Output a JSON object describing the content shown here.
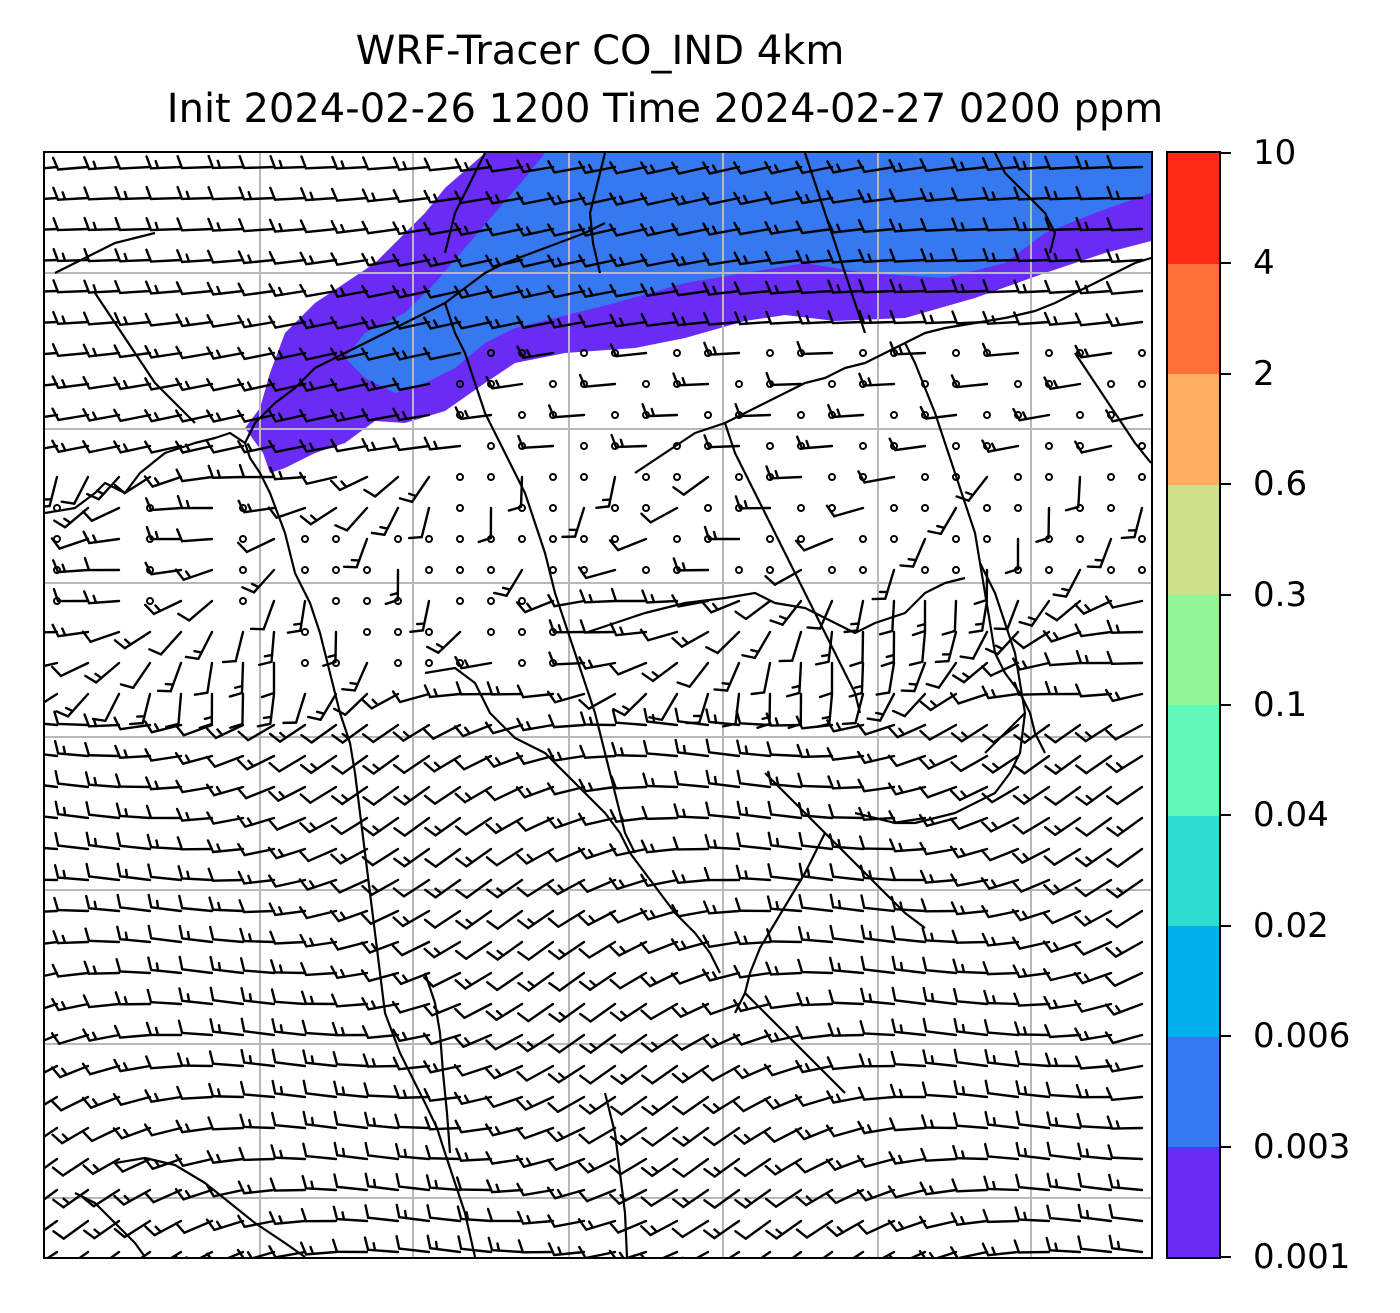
{
  "title": {
    "line1": "WRF-Tracer CO_IND 4km",
    "line2": "Init 2024-02-26 1200 Time 2024-02-27 0200 ppm"
  },
  "colorbar": {
    "levels": [
      "0.001",
      "0.003",
      "0.006",
      "0.02",
      "0.04",
      "0.1",
      "0.3",
      "0.6",
      "2",
      "4",
      "10"
    ],
    "colors": [
      "#6a2cf5",
      "#3578f0",
      "#00b0ec",
      "#2fdcd0",
      "#5ff8b8",
      "#92f597",
      "#cfe08a",
      "#fdae61",
      "#ff6f3a",
      "#ff2a16"
    ]
  },
  "map": {
    "field_colors": {
      "low": "#6a2cf5",
      "mid": "#3578f0"
    },
    "gridline_color": "#b8b8b8",
    "coastline_color": "#000000",
    "barb_color": "#000000"
  }
}
